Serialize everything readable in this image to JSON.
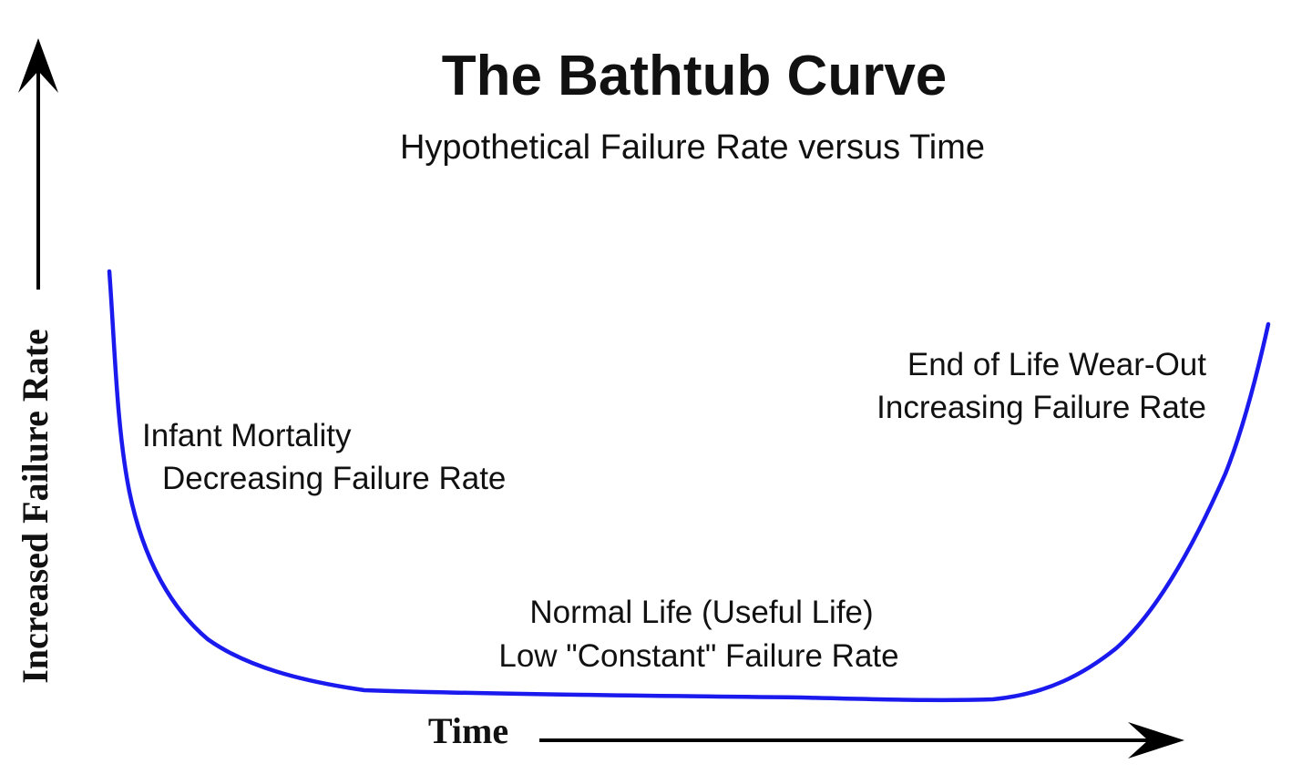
{
  "title": "The Bathtub Curve",
  "subtitle": "Hypothetical Failure Rate versus Time",
  "axes": {
    "x_label": "Time",
    "y_label": "Increased Failure Rate"
  },
  "regions": {
    "infant_mortality": {
      "line1": "Infant Mortality",
      "line2": "Decreasing Failure Rate"
    },
    "normal_life": {
      "line1": "Normal Life (Useful Life)",
      "line2": "Low \"Constant\" Failure Rate"
    },
    "wear_out": {
      "line1": "End of Life Wear-Out",
      "line2": "Increasing Failure Rate"
    }
  },
  "colors": {
    "curve": "#1a1aee",
    "axes": "#000000",
    "text": "#111111"
  }
}
